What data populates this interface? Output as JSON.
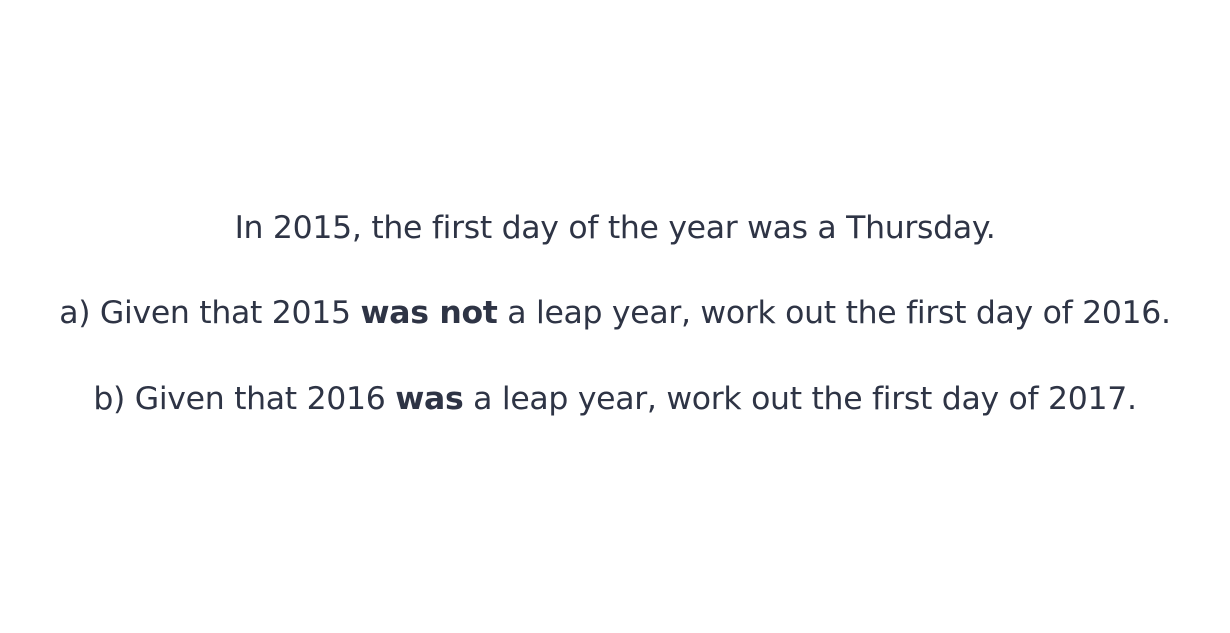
{
  "intro": "In 2015, the first day of the year was a Thursday.",
  "part_a": {
    "before": "a) Given that 2015 ",
    "emphasis": "was not",
    "after": " a leap year, work out the first day of 2016."
  },
  "part_b": {
    "before": "b) Given that 2016 ",
    "emphasis": "was",
    "after": " a leap year, work out the first day of 2017."
  },
  "colors": {
    "text": "#2e3445",
    "background": "#ffffff"
  }
}
